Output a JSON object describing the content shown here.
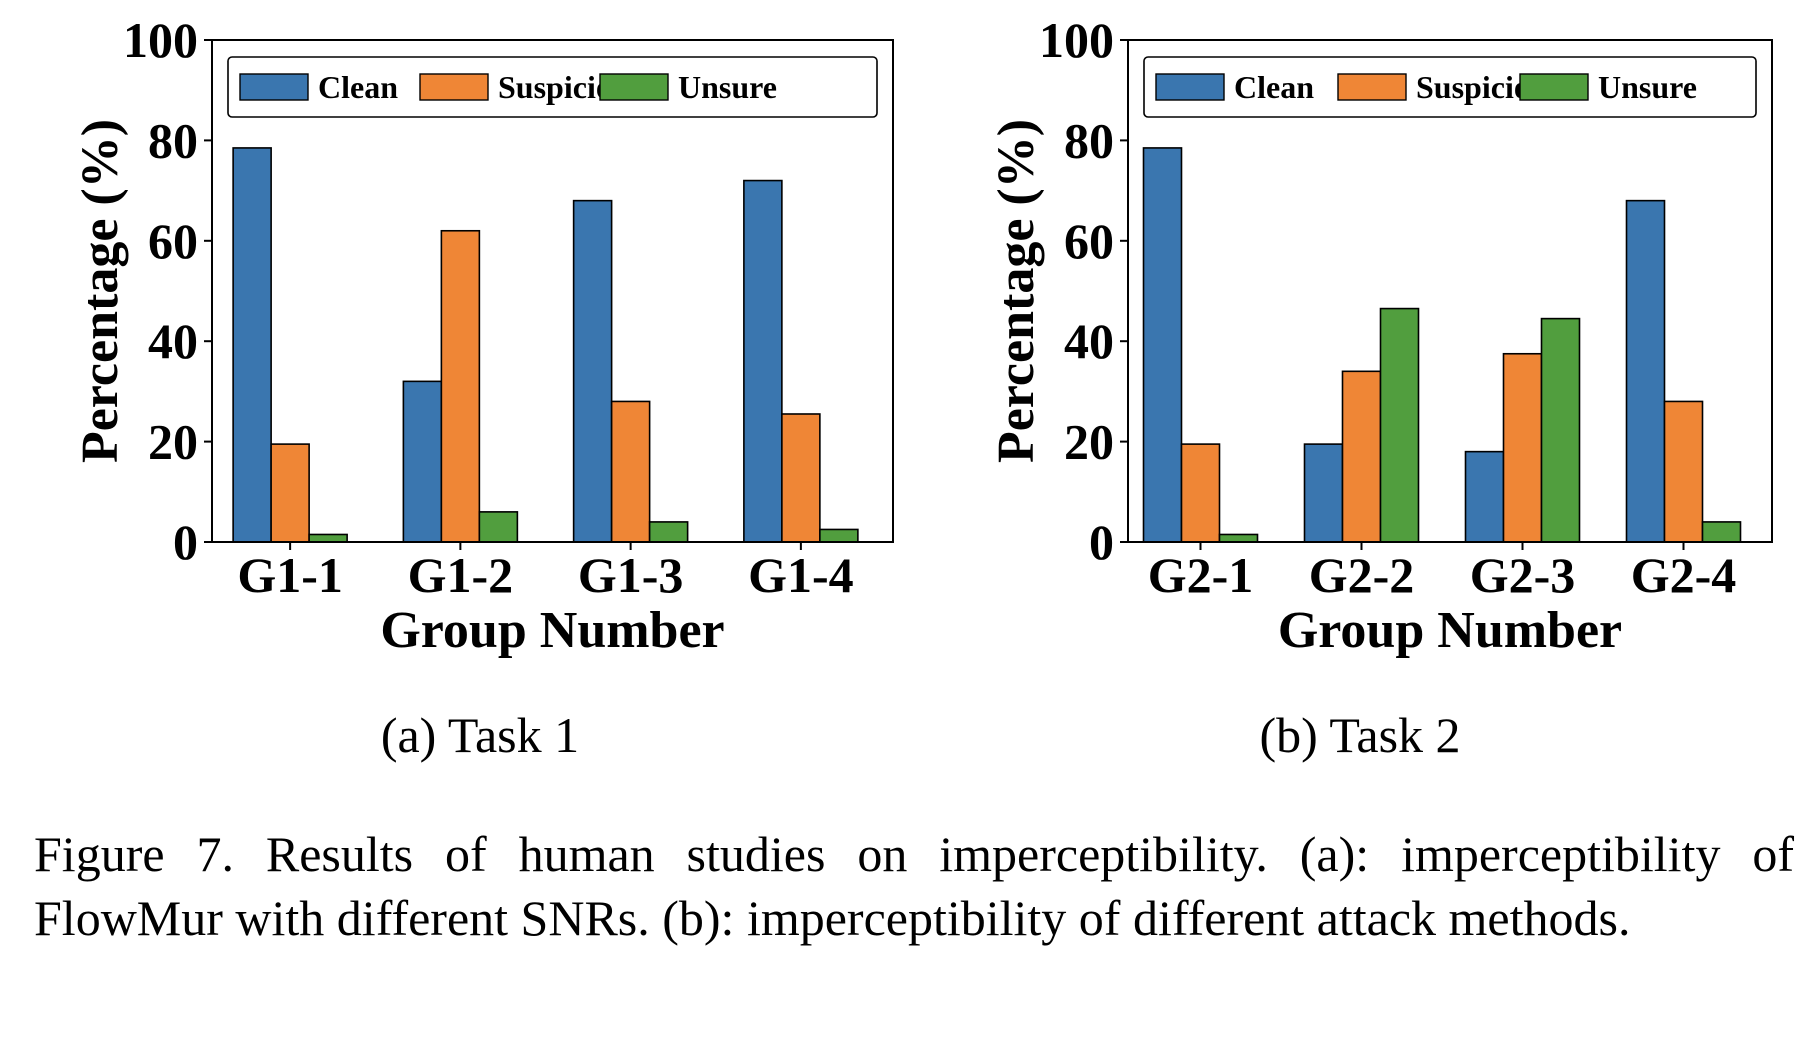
{
  "chart_data": [
    {
      "type": "bar",
      "subcaption": "(a) Task 1",
      "title": "",
      "xlabel": "Group Number",
      "ylabel": "Percentage (%)",
      "ylim": [
        0,
        100
      ],
      "yticks": [
        "0",
        "20",
        "40",
        "60",
        "80",
        "100"
      ],
      "grid": false,
      "legend": "top",
      "categories": [
        "G1-1",
        "G1-2",
        "G1-3",
        "G1-4"
      ],
      "series": [
        {
          "name": "Clean",
          "color": "#3a76af",
          "values": [
            78.5,
            32,
            68,
            72
          ]
        },
        {
          "name": "Suspicious",
          "color": "#ef8636",
          "values": [
            19.5,
            62,
            28,
            25.5
          ]
        },
        {
          "name": "Unsure",
          "color": "#519e3e",
          "values": [
            1.5,
            6,
            4,
            2.5
          ]
        }
      ]
    },
    {
      "type": "bar",
      "subcaption": "(b) Task 2",
      "title": "",
      "xlabel": "Group Number",
      "ylabel": "Percentage (%)",
      "ylim": [
        0,
        100
      ],
      "yticks": [
        "0",
        "20",
        "40",
        "60",
        "80",
        "100"
      ],
      "grid": false,
      "legend": "top",
      "categories": [
        "G2-1",
        "G2-2",
        "G2-3",
        "G2-4"
      ],
      "series": [
        {
          "name": "Clean",
          "color": "#3a76af",
          "values": [
            78.5,
            19.5,
            18,
            68
          ]
        },
        {
          "name": "Suspicious",
          "color": "#ef8636",
          "values": [
            19.5,
            34,
            37.5,
            28
          ]
        },
        {
          "name": "Unsure",
          "color": "#519e3e",
          "values": [
            1.5,
            46.5,
            44.5,
            4
          ]
        }
      ]
    }
  ],
  "caption": "Figure 7. Results of human studies on imperceptibility. (a): imperceptibility of FlowMur with different SNRs. (b): imperceptibility of different attack methods."
}
